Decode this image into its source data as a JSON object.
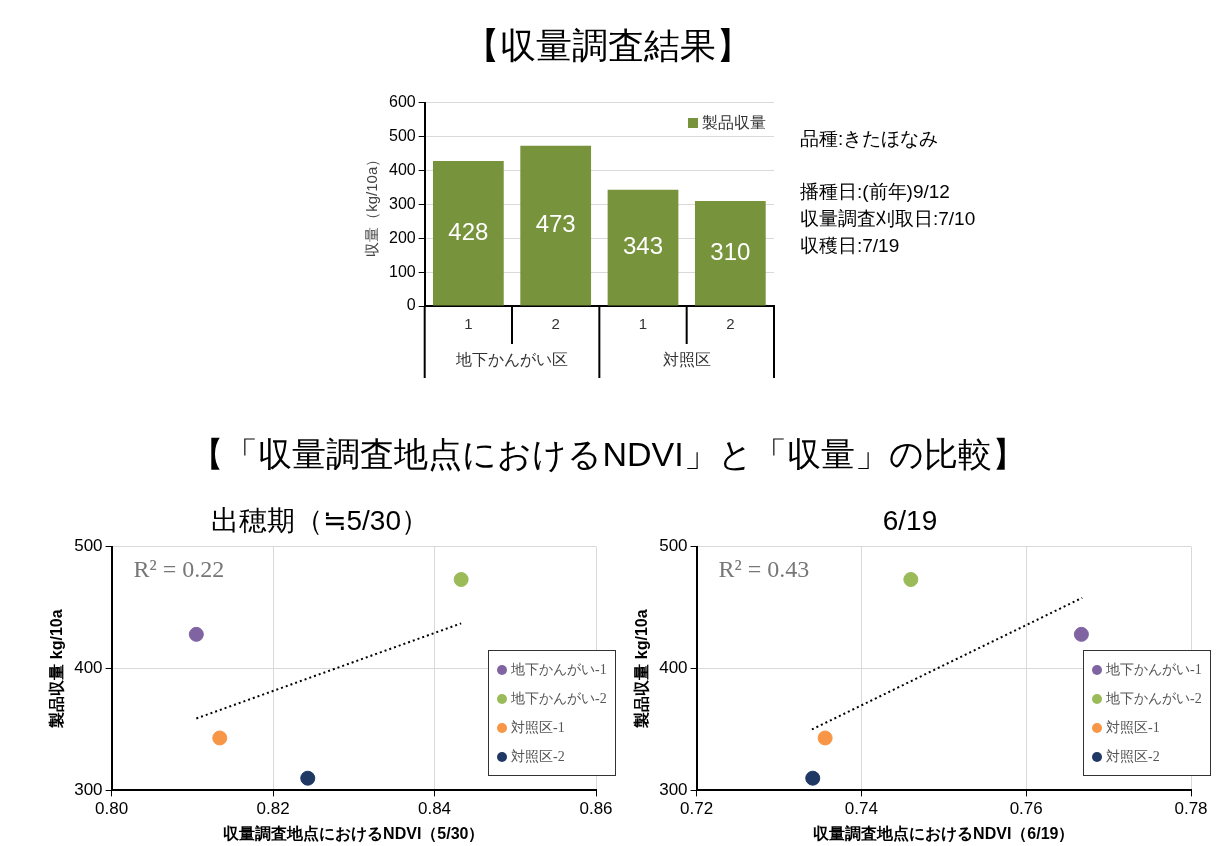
{
  "chart_data": [
    {
      "type": "bar",
      "title": "【収量調査結果】",
      "ylabel": "収量（kg/10a）",
      "categories": [
        "1",
        "2",
        "1",
        "2"
      ],
      "series": [
        {
          "name": "製品収量",
          "color": "#77933c",
          "values": [
            428,
            473,
            343,
            310
          ]
        }
      ],
      "ylim": [
        0,
        600
      ],
      "yticks": [
        0,
        100,
        200,
        300,
        400,
        500,
        600
      ],
      "grid": "y",
      "legend": "top right",
      "data_labels": true,
      "annotations": [
        "地下かんがい区",
        "対照区"
      ]
    },
    {
      "type": "other",
      "annotations": [
        "品種:きたほなみ",
        "播種日:(前年)9/12",
        "収量調査刈取日:7/10",
        "収穫日:7/19"
      ]
    },
    {
      "type": "other",
      "title": "【「収量調査地点におけるNDVI」と「収量」の比較】"
    },
    {
      "type": "scatter",
      "title": "出穂期（≒5/30）",
      "xlabel": "収量調査地点におけるNDVI（5/30）",
      "ylabel": "製品収量 kg/10a",
      "series": [
        {
          "name": "地下かんがい-1",
          "color": "#8064a2",
          "x": [
            0.8105
          ],
          "values": [
            428
          ]
        },
        {
          "name": "地下かんがい-2",
          "color": "#9bbb59",
          "x": [
            0.8433
          ],
          "values": [
            473
          ]
        },
        {
          "name": "対照区-1",
          "color": "#f79646",
          "x": [
            0.8134
          ],
          "values": [
            343
          ]
        },
        {
          "name": "対照区-2",
          "color": "#1f3864",
          "x": [
            0.8243
          ],
          "values": [
            310
          ]
        },
        {
          "type": "line",
          "color": "#000000",
          "line_style": "dotted",
          "marker": "none",
          "x": [
            0.8105,
            0.8433
          ],
          "values": [
            359,
            437
          ]
        }
      ],
      "xlim": [
        0.8,
        0.86
      ],
      "xticks": [
        {
          "value": 0.8,
          "label": "0.80"
        },
        0.82,
        0.84,
        0.86
      ],
      "ylim": [
        300,
        500
      ],
      "yticks": [
        300,
        400,
        500
      ],
      "grid": true,
      "legend": "bottom right",
      "marker": "circle",
      "annotations": [
        "R² = 0.22"
      ]
    },
    {
      "type": "scatter",
      "title": "6/19",
      "xlabel": "収量調査地点におけるNDVI（6/19）",
      "ylabel": "製品収量 kg/10a",
      "series": [
        {
          "name": "地下かんがい-1",
          "color": "#8064a2",
          "x": [
            0.7667
          ],
          "values": [
            428
          ]
        },
        {
          "name": "地下かんがい-2",
          "color": "#9bbb59",
          "x": [
            0.746
          ],
          "values": [
            473
          ]
        },
        {
          "name": "対照区-1",
          "color": "#f79646",
          "x": [
            0.7356
          ],
          "values": [
            343
          ]
        },
        {
          "name": "対照区-2",
          "color": "#1f3864",
          "x": [
            0.7341
          ],
          "values": [
            310
          ]
        },
        {
          "type": "line",
          "color": "#000000",
          "line_style": "dotted",
          "marker": "none",
          "x": [
            0.734,
            0.7668
          ],
          "values": [
            350,
            458
          ]
        }
      ],
      "xlim": [
        0.72,
        0.78
      ],
      "xticks": [
        0.72,
        0.74,
        0.76,
        0.78
      ],
      "ylim": [
        300,
        500
      ],
      "yticks": [
        300,
        400,
        500
      ],
      "grid": true,
      "legend": "bottom right",
      "marker": "circle",
      "annotations": [
        "R² = 0.43"
      ]
    }
  ]
}
